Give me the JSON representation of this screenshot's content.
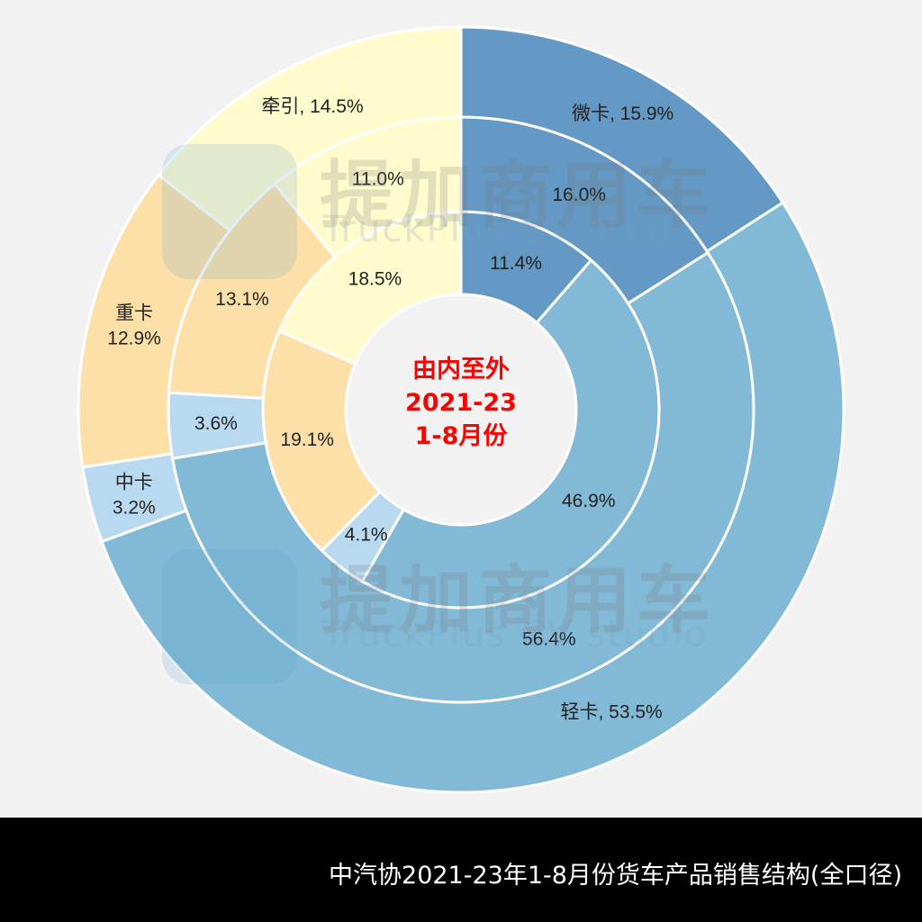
{
  "chart_data": {
    "type": "pie",
    "subtype": "multi-ring donut",
    "start": "12 o'clock, clockwise",
    "categories": [
      "微卡",
      "轻卡",
      "中卡",
      "重卡",
      "牵引"
    ],
    "colors": [
      "#6399c4",
      "#82b9d6",
      "#b9d9f1",
      "#fde0a8",
      "#fffbcd"
    ],
    "series": [
      {
        "ring": "inner",
        "values": [
          11.4,
          46.9,
          4.1,
          19.1,
          18.5
        ]
      },
      {
        "ring": "middle",
        "values": [
          16.0,
          56.4,
          3.6,
          13.1,
          11.0
        ]
      },
      {
        "ring": "outer",
        "values": [
          15.9,
          53.5,
          3.2,
          12.9,
          14.5
        ]
      }
    ],
    "value_suffix": "%",
    "center_label": [
      "由内至外",
      "2021-23",
      "1-8月份"
    ]
  },
  "watermark": {
    "cn": "提加商用车",
    "en": "TruckPlus CV studio"
  },
  "footer": {
    "title": "中汽协2021-23年1-8月份货车产品销售结构(全口径)"
  }
}
